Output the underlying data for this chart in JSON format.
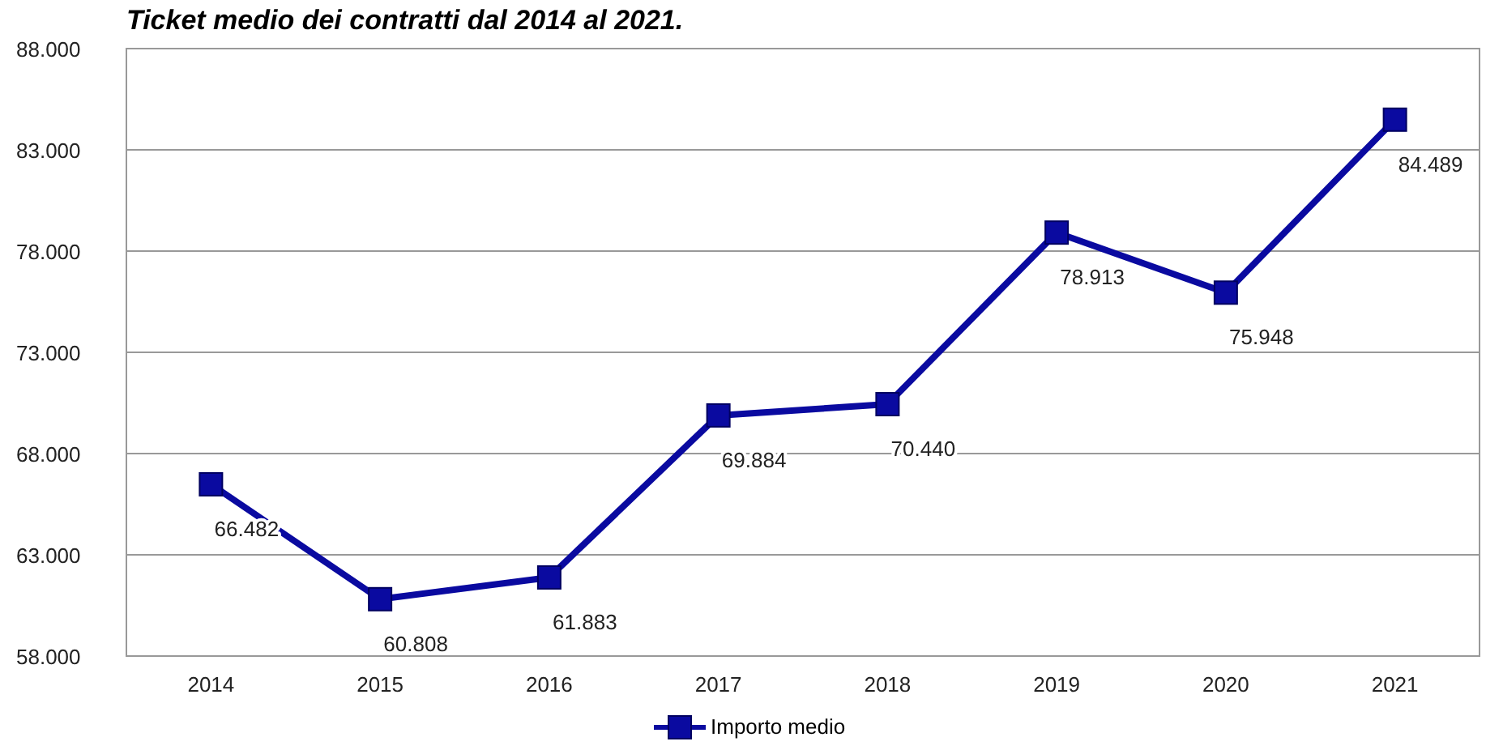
{
  "chart_data": {
    "type": "line",
    "title": "Ticket medio dei contratti dal 2014 al 2021.",
    "categories": [
      "2014",
      "2015",
      "2016",
      "2017",
      "2018",
      "2019",
      "2020",
      "2021"
    ],
    "series": [
      {
        "name": "Importo medio",
        "color": "#0a0aa0",
        "values": [
          66482,
          60808,
          61883,
          69884,
          70440,
          78913,
          75948,
          84489
        ],
        "value_labels": [
          "66.482",
          "60.808",
          "61.883",
          "69.884",
          "70.440",
          "78.913",
          "75.948",
          "84.489"
        ]
      }
    ],
    "ylim": [
      58000,
      88000
    ],
    "yticks": [
      {
        "value": 58000,
        "label": "58.000"
      },
      {
        "value": 63000,
        "label": "63.000"
      },
      {
        "value": 68000,
        "label": "68.000"
      },
      {
        "value": 73000,
        "label": "73.000"
      },
      {
        "value": 78000,
        "label": "78.000"
      },
      {
        "value": 83000,
        "label": "83.000"
      },
      {
        "value": 88000,
        "label": "88.000"
      }
    ],
    "grid": "y",
    "legend": "bottom",
    "marker": "square",
    "line_style": "solid"
  }
}
